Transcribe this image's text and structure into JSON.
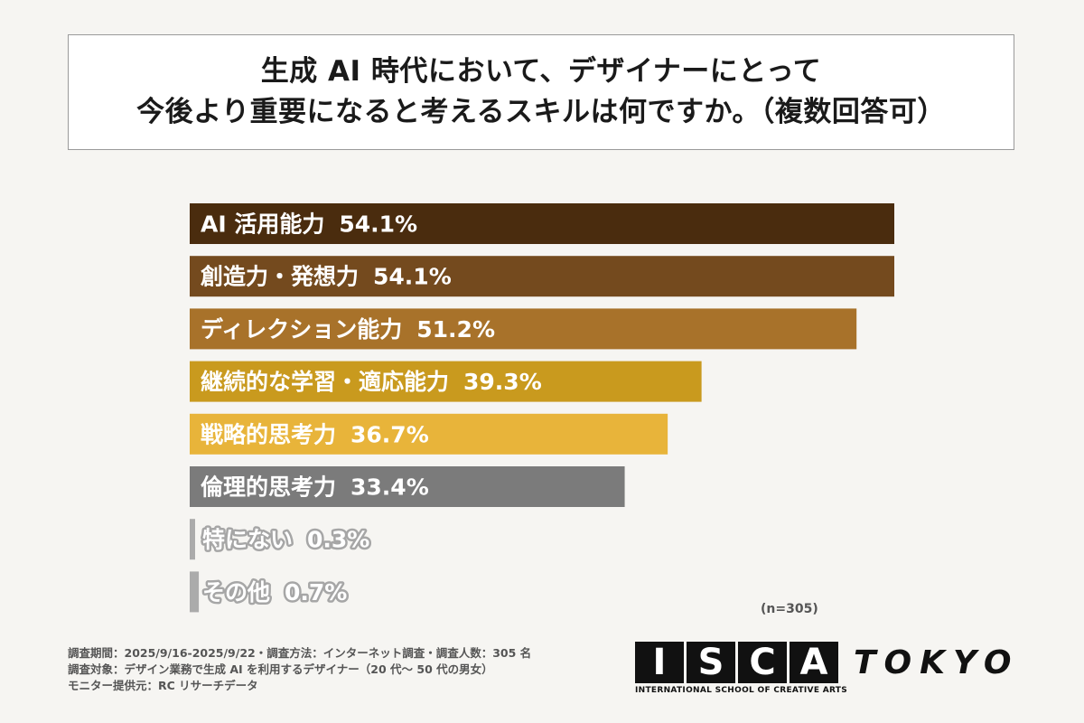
{
  "title": {
    "line1": "生成 AI 時代において、デザイナーにとって",
    "line2": "今後より重要になると考えるスキルは何ですか。（複数回答可）"
  },
  "chart_data": {
    "type": "bar",
    "orientation": "horizontal",
    "categories": [
      "AI 活用能力",
      "創造力・発想力",
      "ディレクション能力",
      "継続的な学習・適応能力",
      "戦略的思考力",
      "倫理的思考力",
      "特にない",
      "その他"
    ],
    "values": [
      54.1,
      54.1,
      51.2,
      39.3,
      36.7,
      33.4,
      0.3,
      0.7
    ],
    "value_labels": [
      "54.1%",
      "54.1%",
      "51.2%",
      "39.3%",
      "36.7%",
      "33.4%",
      "0.3%",
      "0.7%"
    ],
    "colors": [
      "#4a2c0e",
      "#744a1e",
      "#a8722a",
      "#c99a1e",
      "#e8b43a",
      "#7b7b7b",
      "#ababab",
      "#ababab"
    ],
    "xlim": [
      0,
      54.1
    ],
    "grid": false,
    "legend": "none"
  },
  "sample_size": "(n=305)",
  "footnotes": [
    "調査期間：2025/9/16-2025/9/22・調査方法：インターネット調査・調査人数：305 名",
    "調査対象：デザイン業務で生成 AI を利用するデザイナー（20 代～ 50 代の男女）",
    "モニター提供元：RC リサーチデータ"
  ],
  "logo": {
    "letters": [
      "I",
      "S",
      "C",
      "A"
    ],
    "city": "TOKYO",
    "subtitle": "INTERNATIONAL SCHOOL OF CREATIVE ARTS"
  }
}
